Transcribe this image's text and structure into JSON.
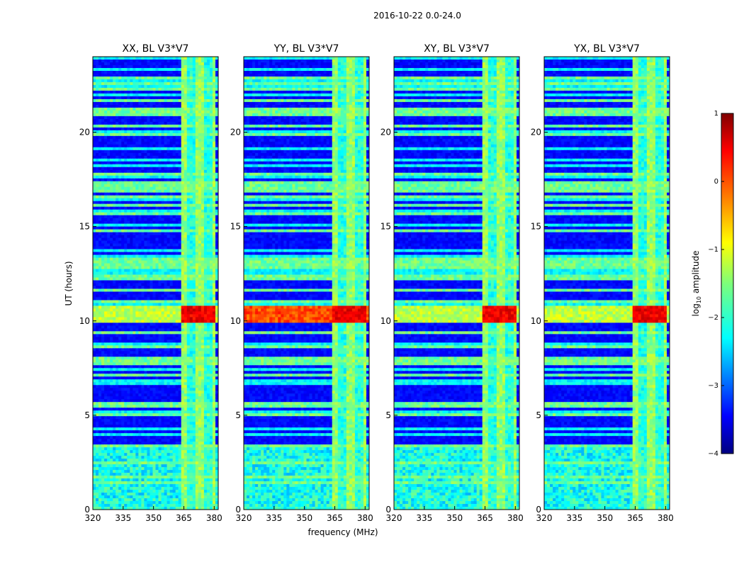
{
  "figure": {
    "suptitle": "2016-10-22 0.0-24.0"
  },
  "chart_data": {
    "type": "heatmap",
    "shared_ylabel": "UT (hours)",
    "shared_xlabel": "frequency (MHz)",
    "ylim": [
      0,
      24
    ],
    "xlim": [
      320,
      382
    ],
    "yticks": [
      0,
      5,
      10,
      15,
      20
    ],
    "xticks": [
      320,
      335,
      350,
      365,
      380
    ],
    "panels": [
      {
        "title": "XX, BL V3*V7",
        "pol": "XX"
      },
      {
        "title": "YY, BL V3*V7",
        "pol": "YY"
      },
      {
        "title": "XY, BL V3*V7",
        "pol": "XY"
      },
      {
        "title": "YX, BL V3*V7",
        "pol": "YX"
      }
    ],
    "colorbar": {
      "label": "log10 amplitude",
      "label_main": "log",
      "label_sub": "10",
      "label_rest": " amplitude",
      "range": [
        -4,
        1
      ],
      "ticks": [
        1,
        0,
        -1,
        -2,
        -3,
        -4
      ],
      "tick_labels": [
        "1",
        "0",
        "−1",
        "−2",
        "−3",
        "−4"
      ],
      "colormap": "jet"
    },
    "features": {
      "rfi_band_mhz": [
        363,
        380
      ],
      "strong_event_ut": [
        9.9,
        10.8
      ]
    }
  },
  "colors": {
    "background": "#00009a",
    "cbar_top": "#800000",
    "cbar_bottom": "#000080"
  }
}
